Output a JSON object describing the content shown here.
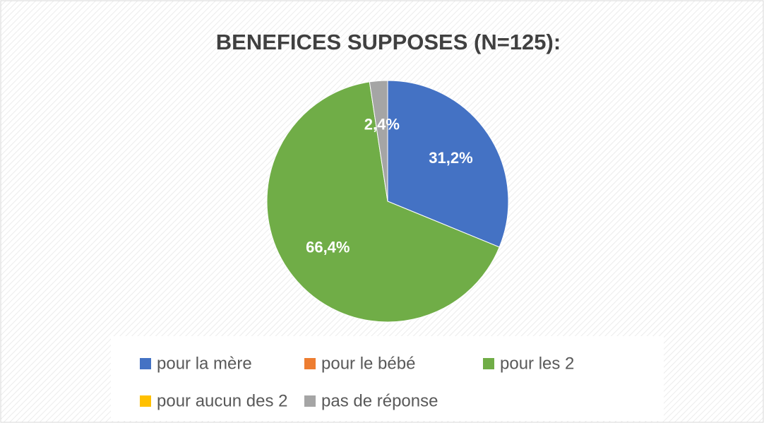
{
  "chart_data": {
    "type": "pie",
    "title": "BENEFICES SUPPOSES (N=125):",
    "categories": [
      "pour la mère",
      "pour le bébé",
      "pour les 2",
      "pour aucun des 2",
      "pas de réponse"
    ],
    "values": [
      31.2,
      0,
      66.4,
      0,
      2.4
    ],
    "value_labels": [
      "31,2%",
      null,
      "66,4%",
      null,
      "2,4%"
    ],
    "colors": [
      "#4472c4",
      "#ed7d31",
      "#70ad47",
      "#ffc000",
      "#a5a5a5"
    ],
    "legend": "bottom"
  }
}
